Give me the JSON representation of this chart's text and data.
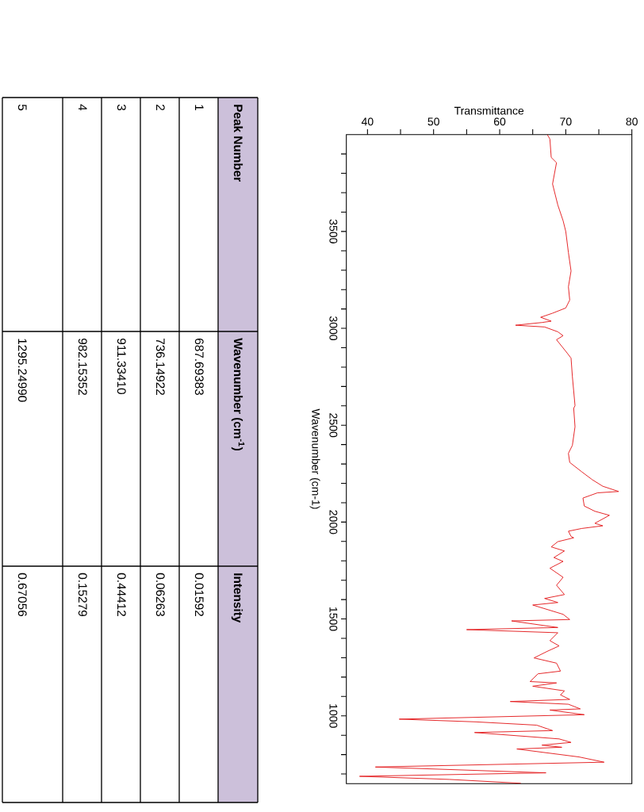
{
  "chart_data": {
    "type": "line",
    "xlabel": "Transmittance",
    "ylabel": "Wavenumber (cm-1)",
    "series": [
      {
        "color": "#e31a1c",
        "x": [
          67.2,
          67.6,
          67.8,
          68.6,
          68.0,
          68.8,
          69.6,
          70.0,
          70.4,
          70.8,
          70.4,
          70.6,
          70.0,
          68.0,
          66.2,
          67.8,
          66.4,
          62.4,
          66.8,
          68.8,
          69.6,
          68.6,
          70.2,
          70.8,
          71.0,
          71.4,
          71.2,
          71.4,
          71.0,
          70.4,
          70.6,
          72.4,
          74.0,
          75.6,
          78.0,
          74.8,
          72.6,
          72.8,
          74.4,
          76.6,
          74.4,
          75.6,
          72.4,
          70.4,
          70.8,
          71.2,
          68.8,
          67.8,
          69.8,
          68.2,
          69.6,
          67.6,
          69.6,
          68.6,
          69.8,
          66.8,
          68.8,
          65.0,
          69.6,
          70.6,
          61.8,
          68.8,
          55.0,
          68.8,
          67.6,
          69.0,
          67.2,
          65.2,
          68.6,
          69.2,
          65.8,
          64.6,
          68.6,
          65.0,
          69.8,
          69.2,
          70.6,
          61.6,
          70.4,
          72.2,
          67.6,
          72.8,
          44.8,
          56.4,
          65.6,
          68.0,
          56.2,
          69.0,
          70.8,
          66.4,
          69.4,
          62.6,
          72.0,
          75.8,
          41.2,
          67.0,
          38.8,
          52.4,
          63.2
        ],
        "values": [
          4000,
          3977,
          3882,
          3855,
          3745,
          3636,
          3555,
          3500,
          3391,
          3296,
          3214,
          3146,
          3105,
          3078,
          3057,
          3037,
          3030,
          3016,
          3007,
          2982,
          2962,
          2941,
          2873,
          2846,
          2751,
          2601,
          2587,
          2492,
          2396,
          2355,
          2308,
          2260,
          2219,
          2185,
          2158,
          2151,
          2124,
          2083,
          2056,
          2035,
          1994,
          1981,
          1967,
          1953,
          1926,
          1919,
          1899,
          1872,
          1851,
          1817,
          1797,
          1762,
          1715,
          1674,
          1626,
          1606,
          1585,
          1572,
          1524,
          1497,
          1490,
          1456,
          1445,
          1429,
          1388,
          1361,
          1333,
          1299,
          1272,
          1231,
          1217,
          1177,
          1170,
          1153,
          1129,
          1108,
          1085,
          1074,
          1060,
          1036,
          1030,
          1006,
          983,
          969,
          952,
          924,
          914,
          881,
          863,
          849,
          838,
          829,
          788,
          761,
          736,
          706,
          688,
          672,
          652
        ]
      }
    ],
    "xlim": [
      36.8,
      80
    ],
    "ylim": [
      650,
      4000
    ],
    "xticks": [
      40,
      {
        "value": 45,
        "label": null
      },
      50,
      {
        "value": 55,
        "label": null
      },
      60,
      {
        "value": 65,
        "label": null
      },
      70,
      {
        "value": 75,
        "label": null
      },
      80
    ],
    "yticks": [
      {
        "value": 3900,
        "label": null
      },
      {
        "value": 3800,
        "label": null
      },
      {
        "value": 3700,
        "label": null
      },
      {
        "value": 3600,
        "label": null
      },
      3500,
      {
        "value": 3400,
        "label": null
      },
      {
        "value": 3300,
        "label": null
      },
      {
        "value": 3200,
        "label": null
      },
      {
        "value": 3100,
        "label": null
      },
      3000,
      {
        "value": 2900,
        "label": null
      },
      {
        "value": 2800,
        "label": null
      },
      {
        "value": 2700,
        "label": null
      },
      {
        "value": 2600,
        "label": null
      },
      2500,
      {
        "value": 2400,
        "label": null
      },
      {
        "value": 2300,
        "label": null
      },
      {
        "value": 2200,
        "label": null
      },
      {
        "value": 2100,
        "label": null
      },
      2000,
      {
        "value": 1900,
        "label": null
      },
      {
        "value": 1800,
        "label": null
      },
      {
        "value": 1700,
        "label": null
      },
      {
        "value": 1600,
        "label": null
      },
      1500,
      {
        "value": 1400,
        "label": null
      },
      {
        "value": 1300,
        "label": null
      },
      {
        "value": 1200,
        "label": null
      },
      {
        "value": 1100,
        "label": null
      },
      1000,
      {
        "value": 900,
        "label": null
      },
      {
        "value": 800,
        "label": null
      },
      {
        "value": 700,
        "label": null
      }
    ],
    "annotations": [
      "Peak Number",
      "Wavenumber (cm$^{-1}$)",
      "Intensity",
      "1",
      "687.69383",
      "0.01592",
      "2",
      "736.14922",
      "0.06263",
      "3",
      "911.33410",
      "0.44412",
      "4",
      "982.15352",
      "0.15279",
      "5",
      "1295.24990",
      "0.67056"
    ]
  }
}
